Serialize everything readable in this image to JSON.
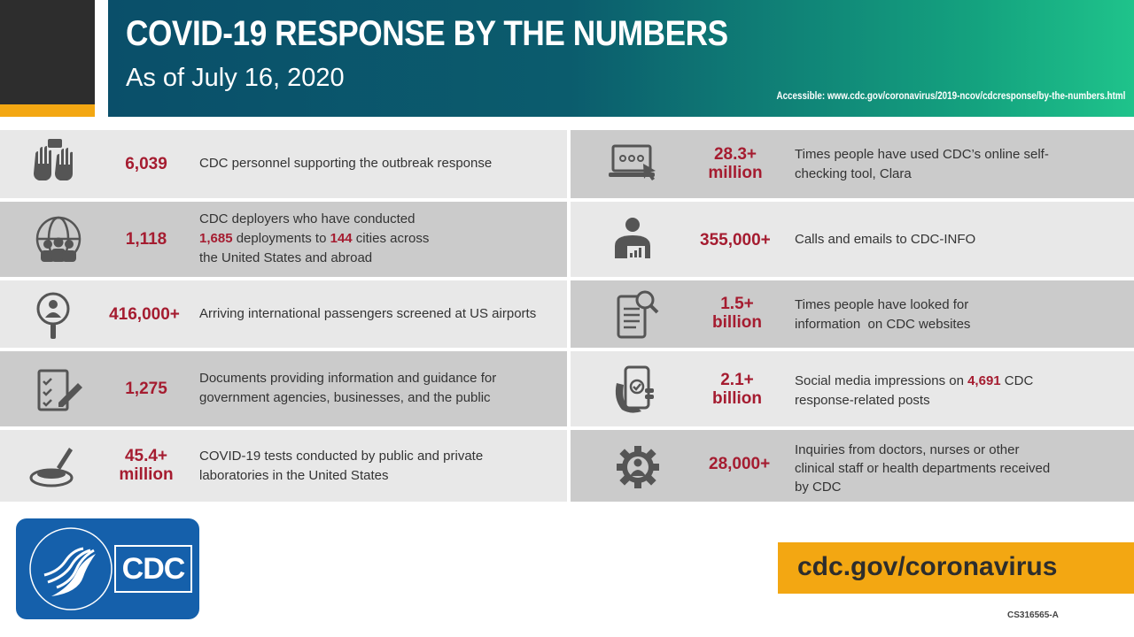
{
  "header": {
    "title": "COVID-19 RESPONSE BY THE NUMBERS",
    "subtitle": "As of July 16, 2020",
    "accessible": "Accessible: www.cdc.gov/coronavirus/2019-ncov/cdcresponse/by-the-numbers.html"
  },
  "left": [
    {
      "number": "6,039",
      "text": "CDC personnel supporting the outbreak response",
      "icon": "hands-icon"
    },
    {
      "number": "1,118",
      "text_a": "CDC deployers who have conducted",
      "text_b1": "1,685",
      "text_b2": " deployments to ",
      "text_b3": "144",
      "text_b4": " cities across",
      "text_c": "the United States and abroad",
      "icon": "globe-people-icon"
    },
    {
      "number": "416,000+",
      "text": "Arriving international passengers screened at US airports",
      "icon": "magnifier-person-icon"
    },
    {
      "number": "1,275",
      "text_a": "Documents providing information and guidance for",
      "text_b": "government agencies, businesses, and the public",
      "icon": "checklist-pen-icon"
    },
    {
      "number_a": "45.4+",
      "number_b": "million",
      "text_a": "COVID-19 tests conducted by public and private",
      "text_b": "laboratories in the United States",
      "icon": "petri-dish-icon"
    }
  ],
  "right": [
    {
      "number_a": "28.3+",
      "number_b": "million",
      "text_a": "Times people have used CDC’s online self-",
      "text_b": "checking tool, Clara",
      "icon": "laptop-cursor-icon"
    },
    {
      "number": "355,000+",
      "text": "Calls and emails to CDC-INFO",
      "icon": "person-chart-icon"
    },
    {
      "number_a": "1.5+",
      "number_b": "billion",
      "text_a": "Times people have looked for",
      "text_b": "information  on CDC websites",
      "icon": "document-search-icon"
    },
    {
      "number_a": "2.1+",
      "number_b": "billion",
      "text_a1": "Social media impressions on ",
      "text_a2": "4,691",
      "text_a3": " CDC",
      "text_b": "response-related posts",
      "icon": "phone-hand-icon"
    },
    {
      "number": "28,000+",
      "text_a": "Inquiries from doctors, nurses or other",
      "text_b": "clinical staff or health departments received",
      "text_c": "by CDC",
      "icon": "gear-person-icon"
    }
  ],
  "logo": {
    "text": "CDC",
    "seal_text": "DEPARTMENT OF HEALTH & HUMAN SERVICES USA"
  },
  "footer": {
    "url": "cdc.gov/coronavirus",
    "code": "CS316565-A"
  },
  "colors": {
    "accent_red": "#a51c30",
    "gold": "#f3a712",
    "banner_start": "#0a4f6a",
    "banner_end": "#1fc38b",
    "cdc_blue": "#1560ab"
  }
}
